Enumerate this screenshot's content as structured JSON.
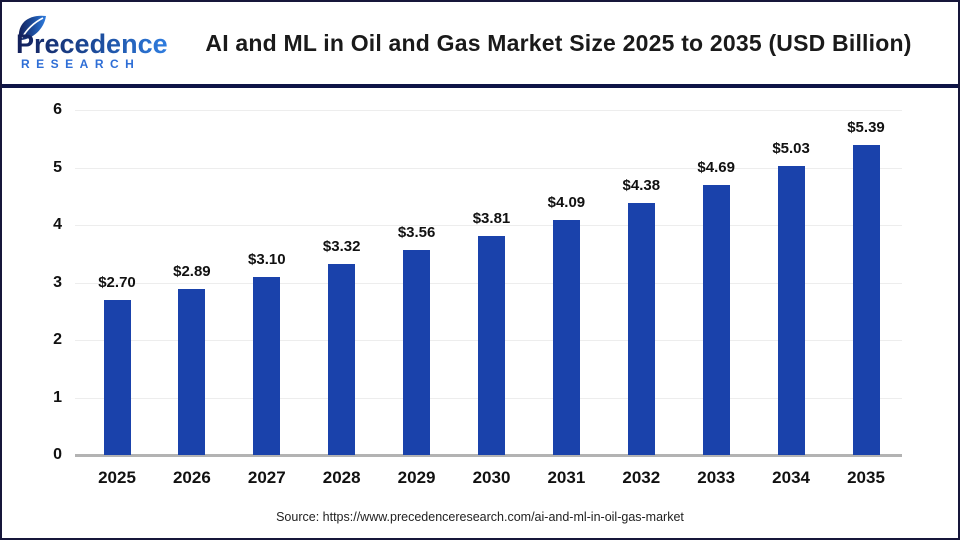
{
  "header": {
    "logo": {
      "line1": "Precedence",
      "line2": "RESEARCH"
    },
    "title": "AI and ML in Oil and Gas Market Size 2025 to 2035 (USD Billion)"
  },
  "chart_data": {
    "type": "bar",
    "title": "AI and ML in Oil and Gas Market Size 2025 to 2035 (USD Billion)",
    "categories": [
      "2025",
      "2026",
      "2027",
      "2028",
      "2029",
      "2030",
      "2031",
      "2032",
      "2033",
      "2034",
      "2035"
    ],
    "values": [
      2.7,
      2.89,
      3.1,
      3.32,
      3.56,
      3.81,
      4.09,
      4.38,
      4.69,
      5.03,
      5.39
    ],
    "data_labels": [
      "$2.70",
      "$2.89",
      "$3.10",
      "$3.32",
      "$3.56",
      "$3.81",
      "$4.09",
      "$4.38",
      "$4.69",
      "$5.03",
      "$5.39"
    ],
    "xlabel": "",
    "ylabel": "",
    "ylim": [
      0,
      6
    ],
    "ytick_step": 1,
    "yticks": [
      "0",
      "1",
      "2",
      "3",
      "4",
      "5",
      "6"
    ],
    "grid": true,
    "legend": false,
    "bar_color": "#1a42ab"
  },
  "footer": {
    "source": "Source: https://www.precedenceresearch.com/ai-and-ml-in-oil-gas-market"
  },
  "colors": {
    "bar": "#1a42ab",
    "divider": "#0e1446",
    "frame_border": "#16163a",
    "gridline": "#ededed",
    "axis_line": "#b3b3b3",
    "logo_gradient_start": "#13205a",
    "logo_gradient_end": "#2f7de0",
    "logo_research_blue": "#2e6ed6"
  }
}
